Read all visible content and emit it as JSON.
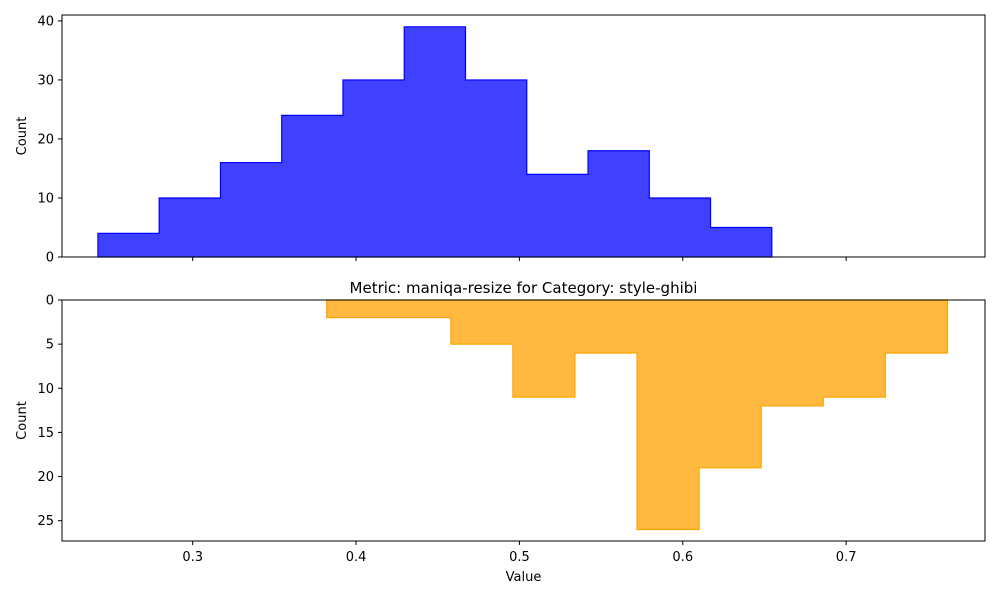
{
  "chart_data": [
    {
      "type": "histogram",
      "orientation": "upward",
      "title": "",
      "xlabel": "",
      "ylabel": "Count",
      "xlim": [
        0.22,
        0.785
      ],
      "ylim": [
        0,
        41
      ],
      "yticks": [
        0,
        10,
        20,
        30,
        40
      ],
      "x_tick_labels_visible": false,
      "color": "#0000ff",
      "fill_color": "#4040ff",
      "bin_edges": [
        0.242,
        0.2795,
        0.317,
        0.3545,
        0.392,
        0.4295,
        0.467,
        0.5045,
        0.542,
        0.5795,
        0.617,
        0.6545
      ],
      "counts": [
        4,
        10,
        16,
        24,
        30,
        39,
        30,
        14,
        18,
        10,
        5
      ]
    },
    {
      "type": "histogram",
      "orientation": "downward",
      "title": "Metric: maniqa-resize for Category: style-ghibi",
      "xlabel": "Value",
      "ylabel": "Count",
      "xlim": [
        0.22,
        0.785
      ],
      "ylim": [
        0,
        27.3
      ],
      "y_inverted": true,
      "yticks": [
        0,
        5,
        10,
        15,
        20,
        25
      ],
      "xticks": [
        0.3,
        0.4,
        0.5,
        0.6,
        0.7
      ],
      "x_tick_labels": [
        "0.3",
        "0.4",
        "0.5",
        "0.6",
        "0.7"
      ],
      "color": "#ffa500",
      "fill_color": "#ffb941",
      "bin_edges": [
        0.382,
        0.42,
        0.458,
        0.496,
        0.534,
        0.572,
        0.61,
        0.648,
        0.686,
        0.724,
        0.762
      ],
      "counts": [
        2,
        2,
        5,
        11,
        6,
        26,
        19,
        12,
        11,
        6
      ]
    }
  ]
}
